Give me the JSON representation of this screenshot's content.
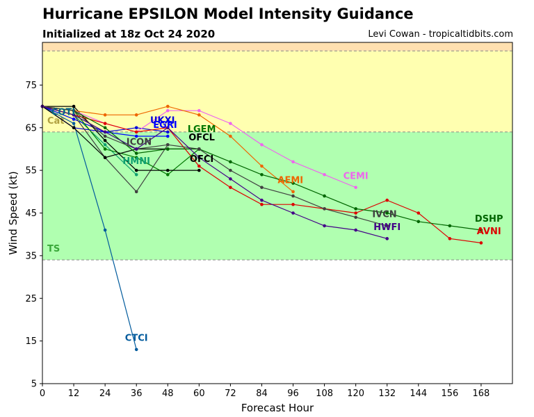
{
  "header": {
    "title": "Hurricane EPSILON Model Intensity Guidance",
    "subtitle": "Initialized at 18z Oct 24 2020",
    "credit": "Levi Cowan - tropicaltidbits.com"
  },
  "chart_data": {
    "type": "line",
    "title": "Hurricane EPSILON Model Intensity Guidance",
    "subtitle": "Initialized at 18z Oct 24 2020",
    "xlabel": "Forecast Hour",
    "ylabel": "Wind Speed (kt)",
    "xlim": [
      0,
      180
    ],
    "ylim": [
      5,
      85
    ],
    "xticks": [
      0,
      12,
      24,
      36,
      48,
      60,
      72,
      84,
      96,
      108,
      120,
      132,
      144,
      156,
      168
    ],
    "xtick_labels": [
      "0",
      "12",
      "24",
      "36",
      "48",
      "60",
      "72",
      "84",
      "96",
      "108",
      "120",
      "132",
      "144",
      "156",
      "168"
    ],
    "yticks": [
      5,
      15,
      25,
      35,
      45,
      55,
      65,
      75
    ],
    "ytick_labels": [
      "5",
      "15",
      "25",
      "35",
      "45",
      "55",
      "65",
      "75"
    ],
    "bands": [
      {
        "from": 34,
        "to": 64,
        "color": "#b0ffb0",
        "label": "TS",
        "label_color": "#3aa83a"
      },
      {
        "from": 64,
        "to": 83,
        "color": "#ffffb0",
        "label": "Cat",
        "label_color": "#b0a040"
      },
      {
        "from": 83,
        "to": 85,
        "color": "#ffe0b0",
        "label": "",
        "label_color": ""
      }
    ],
    "threshold_lines": [
      34,
      64,
      83
    ],
    "series": [
      {
        "name": "CTCI",
        "color": "#005a9c",
        "x": [
          0,
          12,
          24,
          36
        ],
        "y": [
          70,
          66,
          41,
          13
        ],
        "label_at": [
          36,
          15
        ]
      },
      {
        "name": "COTI",
        "color": "#006688",
        "x": [
          0,
          12
        ],
        "y": [
          70,
          67
        ],
        "label_at": [
          8,
          68
        ]
      },
      {
        "name": "HMNI",
        "color": "#10a070",
        "x": [
          0,
          12,
          24,
          36
        ],
        "y": [
          70,
          68,
          61,
          54
        ],
        "label_at": [
          36,
          56.5
        ]
      },
      {
        "name": "UKXI",
        "color": "#0000dd",
        "x": [
          0,
          12,
          24,
          36,
          48
        ],
        "y": [
          70,
          65,
          64,
          65,
          64
        ],
        "label_at": [
          46,
          66
        ]
      },
      {
        "name": "EGRI",
        "color": "#0000ff",
        "x": [
          0,
          12,
          24,
          36,
          48
        ],
        "y": [
          70,
          67,
          64,
          63,
          63
        ],
        "label_at": [
          47,
          65
        ]
      },
      {
        "name": "ICON",
        "color": "#404040",
        "x": [
          0,
          12,
          24,
          36,
          48
        ],
        "y": [
          70,
          68,
          58,
          50,
          61
        ],
        "label_at": [
          37,
          61
        ]
      },
      {
        "name": "LGEM",
        "color": "#007700",
        "x": [
          0,
          12,
          24,
          36,
          48,
          60
        ],
        "y": [
          70,
          69,
          60,
          58,
          54,
          60
        ],
        "label_at": [
          61,
          64
        ]
      },
      {
        "name": "OFCL",
        "color": "#000000",
        "x": [
          0,
          12,
          24,
          36,
          48,
          60
        ],
        "y": [
          70,
          70,
          62,
          55,
          55,
          55
        ],
        "label_at": [
          61,
          62
        ]
      },
      {
        "name": "OFCI",
        "color": "#000000",
        "x": [
          0,
          12,
          24,
          36,
          48,
          60
        ],
        "y": [
          70,
          65,
          58,
          60,
          60,
          60
        ],
        "label_at": [
          61,
          57
        ]
      },
      {
        "name": "CEMI",
        "color": "#ee66ee",
        "x": [
          0,
          12,
          24,
          36,
          48,
          60,
          72,
          84,
          96,
          108,
          120
        ],
        "y": [
          70,
          69,
          66,
          64,
          69,
          69,
          66,
          61,
          57,
          54,
          51
        ],
        "label_at": [
          120,
          53
        ]
      },
      {
        "name": "AEMI",
        "color": "#ee6600",
        "x": [
          0,
          12,
          24,
          36,
          48,
          60,
          72,
          84,
          96
        ],
        "y": [
          70,
          69,
          68,
          68,
          70,
          68,
          63,
          56,
          50
        ],
        "label_at": [
          95,
          52
        ]
      },
      {
        "name": "AVNI",
        "color": "#dd0000",
        "x": [
          0,
          12,
          24,
          36,
          48,
          60,
          72,
          84,
          96,
          108,
          120,
          132,
          144,
          156,
          168
        ],
        "y": [
          70,
          68,
          66,
          64,
          65,
          56,
          51,
          47,
          47,
          46,
          45,
          48,
          45,
          39,
          38
        ],
        "label_at": [
          171,
          40
        ]
      },
      {
        "name": "DSHP",
        "color": "#006600",
        "x": [
          0,
          12,
          24,
          36,
          48,
          60,
          72,
          84,
          96,
          108,
          120,
          132,
          144,
          156,
          168
        ],
        "y": [
          70,
          69,
          65,
          59,
          60,
          60,
          57,
          54,
          52,
          49,
          46,
          45,
          43,
          42,
          41
        ],
        "label_at": [
          171,
          43
        ]
      },
      {
        "name": "IVCN",
        "color": "#404040",
        "x": [
          0,
          12,
          24,
          36,
          48,
          60,
          72,
          84,
          96,
          108,
          120,
          132
        ],
        "y": [
          70,
          69,
          63,
          60,
          61,
          60,
          55,
          51,
          49,
          46,
          44,
          42
        ],
        "label_at": [
          131,
          44
        ]
      },
      {
        "name": "HWFI",
        "color": "#440088",
        "x": [
          0,
          12,
          24,
          36,
          48,
          60,
          72,
          84,
          96,
          108,
          120,
          132
        ],
        "y": [
          70,
          68,
          64,
          60,
          65,
          58,
          53,
          48,
          45,
          42,
          41,
          39
        ],
        "label_at": [
          132,
          41
        ]
      }
    ]
  }
}
